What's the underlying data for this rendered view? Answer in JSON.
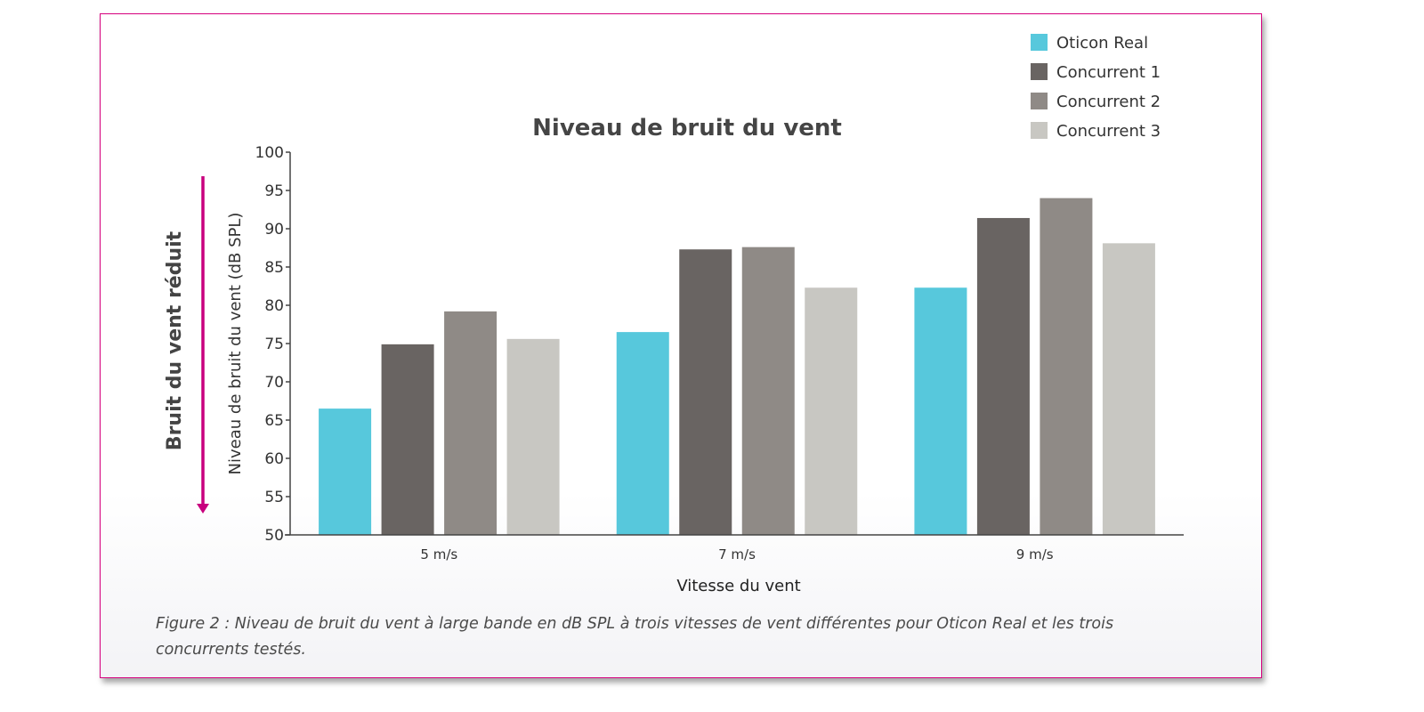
{
  "chart_data": {
    "type": "bar",
    "title": "Niveau de bruit du vent",
    "xlabel": "Vitesse du vent",
    "ylabel": "Niveau de bruit du vent (dB SPL)",
    "side_label": "Bruit du vent réduit",
    "categories": [
      "5 m/s",
      "7 m/s",
      "9 m/s"
    ],
    "ylim": [
      50,
      100
    ],
    "yticks": [
      100,
      95,
      90,
      85,
      80,
      75,
      70,
      65,
      60,
      55,
      50
    ],
    "grid": false,
    "legend_position": "top-right",
    "series": [
      {
        "name": "Oticon Real",
        "color": "#57c8dc",
        "values": [
          66.5,
          76.5,
          82.3
        ]
      },
      {
        "name": "Concurrent 1",
        "color": "#696462",
        "values": [
          74.9,
          87.3,
          91.4
        ]
      },
      {
        "name": "Concurrent 2",
        "color": "#8f8a86",
        "values": [
          79.2,
          87.6,
          94.0
        ]
      },
      {
        "name": "Concurrent 3",
        "color": "#c8c7c2",
        "values": [
          75.6,
          82.3,
          88.1
        ]
      }
    ]
  },
  "caption": "Figure 2 : Niveau de bruit du vent à large bande en dB SPL à trois vitesses de vent différentes pour Oticon Real et les trois concurrents testés.",
  "colors": {
    "border": "#d6007e",
    "arrow": "#c8007e"
  }
}
